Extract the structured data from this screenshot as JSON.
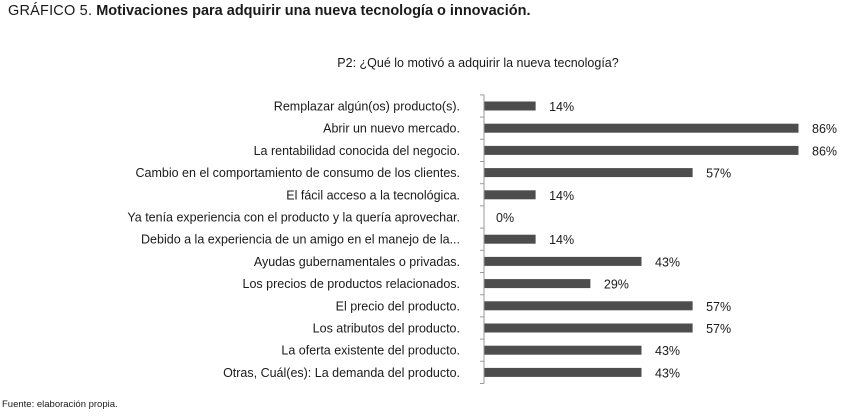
{
  "figure": {
    "title_lead": "GRÁFICO 5.",
    "title_rest": "Motivaciones para adquirir una nueva tecnología o innovación.",
    "source": "Fuente: elaboración propia."
  },
  "chart_data": {
    "type": "bar",
    "orientation": "horizontal",
    "title": "P2: ¿Qué lo motivó a adquirir la nueva tecnología?",
    "categories": [
      "Remplazar algún(os) producto(s).",
      "Abrir un nuevo mercado.",
      "La rentabilidad conocida del negocio.",
      "Cambio en el comportamiento de consumo de los clientes.",
      "El fácil acceso a la tecnológica.",
      "Ya tenía experiencia con el producto y la quería aprovechar.",
      "Debido a la experiencia de un amigo en el manejo de la...",
      "Ayudas gubernamentales o privadas.",
      "Los precios de productos relacionados.",
      "El precio del producto.",
      "Los atributos del producto.",
      "La oferta existente del producto.",
      "Otras, Cuál(es): La demanda del producto."
    ],
    "values": [
      14,
      86,
      86,
      57,
      14,
      0,
      14,
      43,
      29,
      57,
      57,
      43,
      43
    ],
    "value_labels": [
      "14%",
      "86%",
      "86%",
      "57%",
      "14%",
      "0%",
      "14%",
      "43%",
      "29%",
      "57%",
      "57%",
      "43%",
      "43%"
    ],
    "xlim": [
      0,
      86
    ],
    "grid": false,
    "legend": "none",
    "bar_color": "#4d4d4d"
  }
}
